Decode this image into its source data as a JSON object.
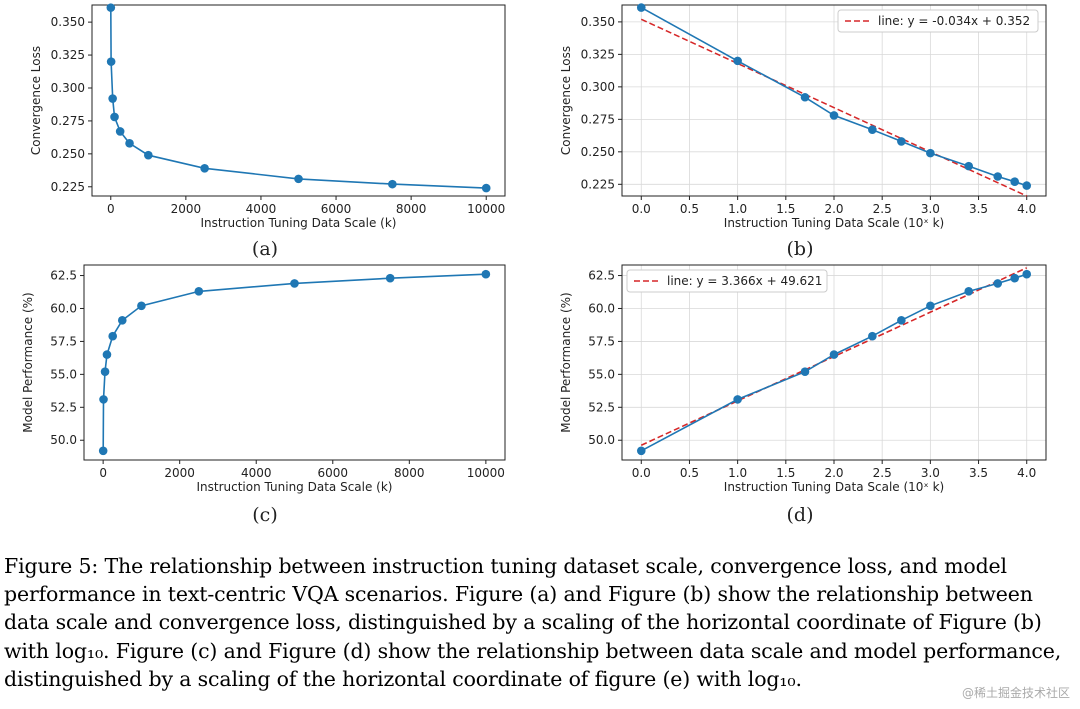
{
  "chart_data": [
    {
      "type": "line",
      "panel_label": "(a)",
      "xlabel": "Instruction Tuning Data Scale (k)",
      "ylabel": "Convergence Loss",
      "xlim": [
        -500,
        10500
      ],
      "ylim": [
        0.218,
        0.363
      ],
      "xticks": [
        0,
        2000,
        4000,
        6000,
        8000,
        10000
      ],
      "xtick_labels": [
        "0",
        "2000",
        "4000",
        "6000",
        "8000",
        "10000"
      ],
      "yticks": [
        0.225,
        0.25,
        0.275,
        0.3,
        0.325,
        0.35
      ],
      "ytick_labels": [
        "0.225",
        "0.250",
        "0.275",
        "0.300",
        "0.325",
        "0.350"
      ],
      "grid": false,
      "series": [
        {
          "x": [
            1,
            10,
            50,
            100,
            250,
            500,
            1000,
            2500,
            5000,
            7500,
            10000
          ],
          "y": [
            0.361,
            0.32,
            0.292,
            0.278,
            0.267,
            0.258,
            0.249,
            0.239,
            0.231,
            0.227,
            0.224
          ]
        }
      ]
    },
    {
      "type": "line",
      "panel_label": "(b)",
      "xlabel": "Instruction Tuning Data Scale (10ˣ k)",
      "ylabel": "Convergence Loss",
      "xlim": [
        -0.2,
        4.2
      ],
      "ylim": [
        0.216,
        0.363
      ],
      "xticks": [
        0,
        0.5,
        1,
        1.5,
        2,
        2.5,
        3,
        3.5,
        4
      ],
      "xtick_labels": [
        "0.0",
        "0.5",
        "1.0",
        "1.5",
        "2.0",
        "2.5",
        "3.0",
        "3.5",
        "4.0"
      ],
      "yticks": [
        0.225,
        0.25,
        0.275,
        0.3,
        0.325,
        0.35
      ],
      "ytick_labels": [
        "0.225",
        "0.250",
        "0.275",
        "0.300",
        "0.325",
        "0.350"
      ],
      "grid": true,
      "legend": {
        "label": "line: y = -0.034x + 0.352",
        "position": "upper right"
      },
      "fit": {
        "slope": -0.034,
        "intercept": 0.352,
        "color": "#d62728"
      },
      "series": [
        {
          "x": [
            0,
            1,
            1.699,
            2,
            2.398,
            2.699,
            3,
            3.398,
            3.699,
            3.875,
            4
          ],
          "y": [
            0.361,
            0.32,
            0.292,
            0.278,
            0.267,
            0.258,
            0.249,
            0.239,
            0.231,
            0.227,
            0.224
          ]
        }
      ]
    },
    {
      "type": "line",
      "panel_label": "(c)",
      "xlabel": "Instruction Tuning Data Scale (k)",
      "ylabel": "Model Performance (%)",
      "xlim": [
        -500,
        10500
      ],
      "ylim": [
        48.5,
        63.3
      ],
      "xticks": [
        0,
        2000,
        4000,
        6000,
        8000,
        10000
      ],
      "xtick_labels": [
        "0",
        "2000",
        "4000",
        "6000",
        "8000",
        "10000"
      ],
      "yticks": [
        50,
        52.5,
        55,
        57.5,
        60,
        62.5
      ],
      "ytick_labels": [
        "50.0",
        "52.5",
        "55.0",
        "57.5",
        "60.0",
        "62.5"
      ],
      "grid": false,
      "series": [
        {
          "x": [
            1,
            10,
            50,
            100,
            250,
            500,
            1000,
            2500,
            5000,
            7500,
            10000
          ],
          "y": [
            49.2,
            53.1,
            55.2,
            56.5,
            57.9,
            59.1,
            60.2,
            61.3,
            61.9,
            62.3,
            62.6
          ]
        }
      ]
    },
    {
      "type": "line",
      "panel_label": "(d)",
      "xlabel": "Instruction Tuning Data Scale (10ˣ k)",
      "ylabel": "Model Performance (%)",
      "xlim": [
        -0.2,
        4.2
      ],
      "ylim": [
        48.5,
        63.3
      ],
      "xticks": [
        0,
        0.5,
        1,
        1.5,
        2,
        2.5,
        3,
        3.5,
        4
      ],
      "xtick_labels": [
        "0.0",
        "0.5",
        "1.0",
        "1.5",
        "2.0",
        "2.5",
        "3.0",
        "3.5",
        "4.0"
      ],
      "yticks": [
        50,
        52.5,
        55,
        57.5,
        60,
        62.5
      ],
      "ytick_labels": [
        "50.0",
        "52.5",
        "55.0",
        "57.5",
        "60.0",
        "62.5"
      ],
      "grid": true,
      "legend": {
        "label": "line: y = 3.366x + 49.621",
        "position": "upper left"
      },
      "fit": {
        "slope": 3.366,
        "intercept": 49.621,
        "color": "#d62728"
      },
      "series": [
        {
          "x": [
            0,
            1,
            1.699,
            2,
            2.398,
            2.699,
            3,
            3.398,
            3.699,
            3.875,
            4
          ],
          "y": [
            49.2,
            53.1,
            55.2,
            56.5,
            57.9,
            59.1,
            60.2,
            61.3,
            61.9,
            62.3,
            62.6
          ]
        }
      ]
    }
  ],
  "colors": {
    "series": "#1f77b4",
    "fit": "#d62728",
    "grid": "#d9d9d9"
  },
  "caption": {
    "lines": [
      "Figure 5: The relationship between instruction tuning dataset scale, convergence loss, and model",
      "performance in text-centric VQA scenarios. Figure (a) and Figure (b) show the relationship between",
      "data scale and convergence loss, distinguished by a scaling of the horizontal coordinate of Figure (b)",
      "with log₁₀. Figure (c) and Figure (d) show the relationship between data scale and model performance,",
      "distinguished by a scaling of the horizontal coordinate of figure (e) with log₁₀."
    ]
  },
  "watermark": "@稀土掘金技术社区"
}
